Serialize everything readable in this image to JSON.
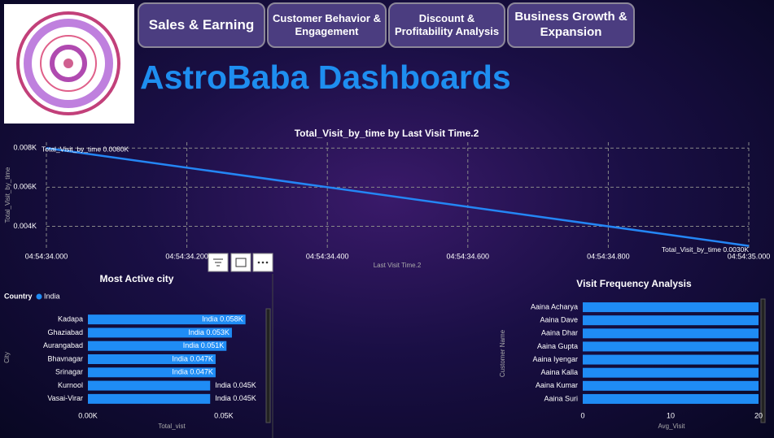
{
  "header": {
    "title": "AstroBaba Dashboards",
    "nav": [
      "Sales  & Earning",
      "Customer Behavior & Engagement",
      "Discount & Profitability  Analysis",
      "Business Growth & Expansion"
    ]
  },
  "chart_data": [
    {
      "type": "line",
      "title": "Total_Visit_by_time by Last Visit Time.2",
      "x_label": "Last Visit Time.2",
      "y_label": "Total_Visit_by_time",
      "x": [
        34.0,
        35.0
      ],
      "series": [
        {
          "name": "Total_Visit_by_time",
          "color": "#2486f5",
          "values": [
            0.008,
            0.003
          ],
          "value_labels": [
            "Total_Visit_by_time 0.0080K",
            "Total_Visit_by_time 0.0030K"
          ]
        }
      ],
      "xlim": [
        34.0,
        35.0
      ],
      "xticks": [
        {
          "value": 34.0,
          "label": "04:54:34.000"
        },
        {
          "value": 34.2,
          "label": "04:54:34.200"
        },
        {
          "value": 34.4,
          "label": "04:54:34.400"
        },
        {
          "value": 34.6,
          "label": "04:54:34.600"
        },
        {
          "value": 34.8,
          "label": "04:54:34.800"
        },
        {
          "value": 35.0,
          "label": "04:54:35.000"
        }
      ],
      "ylim": [
        0.0029,
        0.0083
      ],
      "yticks": [
        {
          "value": 0.004,
          "label": "0.004K"
        },
        {
          "value": 0.006,
          "label": "0.006K"
        },
        {
          "value": 0.008,
          "label": "0.008K"
        }
      ],
      "grid": true
    },
    {
      "type": "hbar",
      "title": "Most Active city",
      "legend_title": "Country",
      "x_label": "Total_vist",
      "y_label": "City",
      "categories": [
        "Kadapa",
        "Ghaziabad",
        "Aurangabad",
        "Bhavnagar",
        "Srinagar",
        "Kurnool",
        "Vasai-Virar"
      ],
      "series": [
        {
          "name": "India",
          "color": "#1f8cf5",
          "values": [
            0.058,
            0.053,
            0.051,
            0.047,
            0.047,
            0.045,
            0.045
          ],
          "value_labels": [
            "India 0.058K",
            "India 0.053K",
            "India 0.051K",
            "India 0.047K",
            "India 0.047K",
            "India 0.045K",
            "India 0.045K"
          ]
        }
      ],
      "xlim": [
        0,
        0.0635
      ],
      "xticks": [
        {
          "value": 0,
          "label": "0.00K"
        },
        {
          "value": 0.05,
          "label": "0.05K"
        }
      ]
    },
    {
      "type": "hbar",
      "title": "Visit Frequency Analysis",
      "x_label": "Avg_Visit",
      "y_label": "Customer Name",
      "categories": [
        "Aaina Acharya",
        "Aaina Dave",
        "Aaina Dhar",
        "Aaina Gupta",
        "Aaina Iyengar",
        "Aaina Kalla",
        "Aaina Kumar",
        "Aaina Suri"
      ],
      "series": [
        {
          "color": "#1f8cf5",
          "values": [
            20,
            20,
            20,
            20,
            20,
            20,
            20,
            20
          ]
        }
      ],
      "xlim": [
        0,
        20
      ],
      "xticks": [
        0,
        10,
        20
      ]
    }
  ]
}
